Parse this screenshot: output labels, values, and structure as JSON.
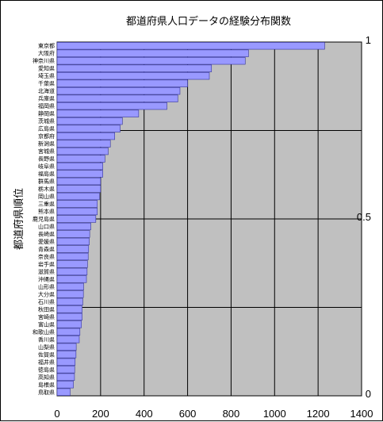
{
  "chart_data": {
    "type": "bar",
    "orientation": "horizontal",
    "title": "都道府県人口データの経験分布関数",
    "ylabel": "都道府県順位",
    "xlabel": "",
    "xlim": [
      0,
      1400
    ],
    "x_ticks": [
      "0",
      "200",
      "400",
      "600",
      "800",
      "1000",
      "1200",
      "1400"
    ],
    "secondary_y_ticks": [
      "1",
      "0.5",
      "0"
    ],
    "grid": true,
    "bar_color": "#9999ff",
    "plot_background": "#c0c0c0",
    "categories": [
      "東京都",
      "大阪府",
      "神奈川県",
      "愛知県",
      "埼玉県",
      "千葉県",
      "北海道",
      "兵庫県",
      "福岡県",
      "静岡県",
      "茨城県",
      "広島県",
      "京都府",
      "新潟県",
      "宮城県",
      "長野県",
      "岐阜県",
      "福島県",
      "群馬県",
      "栃木県",
      "岡山県",
      "三重県",
      "熊本県",
      "鹿児島県",
      "山口県",
      "長崎県",
      "愛媛県",
      "青森県",
      "奈良県",
      "岩手県",
      "滋賀県",
      "沖縄県",
      "山形県",
      "大分県",
      "石川県",
      "秋田県",
      "宮崎県",
      "富山県",
      "和歌山県",
      "香川県",
      "山梨県",
      "佐賀県",
      "福井県",
      "徳島県",
      "高知県",
      "島根県",
      "鳥取県"
    ],
    "values": [
      1230,
      880,
      865,
      710,
      700,
      600,
      565,
      555,
      505,
      375,
      300,
      290,
      265,
      245,
      235,
      220,
      210,
      210,
      200,
      200,
      195,
      185,
      185,
      178,
      155,
      150,
      148,
      145,
      143,
      140,
      138,
      135,
      122,
      121,
      118,
      115,
      115,
      112,
      105,
      102,
      88,
      87,
      83,
      81,
      80,
      75,
      60
    ]
  }
}
